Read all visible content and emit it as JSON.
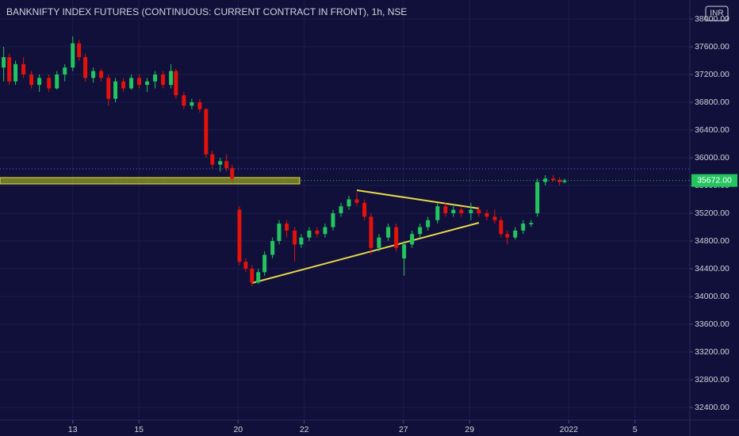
{
  "chart_data": {
    "type": "candlestick",
    "title": "BANKNIFTY INDEX FUTURES (CONTINUOUS: CURRENT CONTRACT IN FRONT), 1h, NSE",
    "currency": "INR",
    "up_color": "#22c55e",
    "down_color": "#e3120b",
    "x": [
      -2.09,
      -1.92,
      -1.73,
      -1.49,
      -1.25,
      -1.01,
      -0.72,
      -0.48,
      -0.24,
      0,
      0.19,
      0.38,
      0.62,
      0.86,
      1.08,
      1.29,
      1.53,
      1.77,
      2.01,
      2.25,
      2.49,
      2.73,
      2.97,
      3.12,
      3.36,
      3.6,
      3.84,
      4.03,
      4.22,
      4.46,
      4.65,
      4.82,
      5.04,
      5.23,
      5.42,
      5.61,
      5.8,
      6.04,
      6.24,
      6.47,
      6.71,
      6.91,
      7.15,
      7.39,
      7.63,
      7.87,
      8.11,
      8.35,
      8.59,
      8.82,
      9.02,
      9.26,
      9.54,
      9.78,
      10.02,
      10.26,
      10.5,
      10.74,
      11.03,
      11.27,
      11.51,
      11.75,
      12.04,
      12.28,
      12.52,
      12.76,
      12.95,
      13.14,
      13.38,
      13.62,
      13.86,
      14.05,
      14.29,
      14.53,
      14.72,
      14.87
    ],
    "open": [
      37300,
      37450,
      37100,
      37350,
      37200,
      37050,
      37150,
      37000,
      37200,
      37300,
      37650,
      37450,
      37150,
      37250,
      37150,
      36850,
      37100,
      37000,
      37150,
      37050,
      37100,
      37200,
      37050,
      37250,
      36900,
      36750,
      36800,
      36700,
      36050,
      35900,
      35950,
      35850,
      35250,
      34500,
      34400,
      34200,
      34350,
      34600,
      34800,
      35050,
      34950,
      34750,
      34850,
      34950,
      34900,
      35000,
      35200,
      35300,
      35400,
      35350,
      35150,
      34700,
      34850,
      35000,
      34550,
      34750,
      34900,
      35000,
      35100,
      35300,
      35200,
      35250,
      35200,
      35250,
      35200,
      35150,
      35100,
      34900,
      34850,
      34950,
      35040,
      35200,
      35650,
      35700,
      35680,
      35650
    ],
    "high": [
      37600,
      37500,
      37400,
      37450,
      37250,
      37200,
      37200,
      37250,
      37350,
      37750,
      37700,
      37500,
      37300,
      37280,
      37200,
      37150,
      37150,
      37200,
      37200,
      37150,
      37250,
      37250,
      37350,
      37280,
      36950,
      36850,
      36850,
      36720,
      36100,
      36000,
      36050,
      35900,
      35300,
      34550,
      34450,
      34400,
      34650,
      34850,
      35100,
      35100,
      35000,
      34900,
      35000,
      35000,
      35050,
      35250,
      35350,
      35450,
      35500,
      35400,
      35200,
      34900,
      35050,
      35050,
      34800,
      34950,
      35050,
      35150,
      35350,
      35350,
      35300,
      35300,
      35350,
      35300,
      35250,
      35250,
      35150,
      34950,
      35000,
      35100,
      35100,
      35700,
      35750,
      35750,
      35720,
      35700
    ],
    "low": [
      37100,
      37050,
      37050,
      37150,
      37000,
      36950,
      36950,
      36980,
      37100,
      37250,
      37400,
      37100,
      37080,
      37100,
      36750,
      36800,
      36950,
      36980,
      37000,
      36950,
      37000,
      37000,
      37000,
      36850,
      36700,
      36700,
      36650,
      36000,
      35850,
      35800,
      35800,
      35650,
      34450,
      34350,
      34150,
      34180,
      34300,
      34550,
      34750,
      34850,
      34500,
      34700,
      34800,
      34850,
      34850,
      34950,
      35150,
      35250,
      35300,
      35100,
      34600,
      34650,
      34800,
      34650,
      34300,
      34700,
      34850,
      34950,
      35050,
      35150,
      35150,
      35150,
      35100,
      35150,
      35100,
      35050,
      34850,
      34750,
      34820,
      34900,
      35000,
      35150,
      35600,
      35650,
      35600,
      35630
    ],
    "close": [
      37450,
      37100,
      37350,
      37200,
      37050,
      37150,
      37000,
      37200,
      37300,
      37650,
      37450,
      37150,
      37250,
      37150,
      36850,
      37100,
      37000,
      37150,
      37050,
      37100,
      37200,
      37050,
      37250,
      36900,
      36750,
      36800,
      36700,
      36050,
      35900,
      35950,
      35850,
      35700,
      34500,
      34400,
      34200,
      34350,
      34600,
      34800,
      35050,
      34950,
      34750,
      34850,
      34950,
      34900,
      35000,
      35200,
      35300,
      35400,
      35350,
      35150,
      34700,
      34850,
      35000,
      34700,
      34750,
      34900,
      35000,
      35100,
      35300,
      35200,
      35250,
      35200,
      35250,
      35200,
      35150,
      35100,
      34900,
      34850,
      34950,
      35050,
      35060,
      35650,
      35700,
      35680,
      35650,
      35672
    ],
    "xlim": [
      -2.2,
      18.66
    ],
    "xticks": [
      {
        "value": 0,
        "label": "13"
      },
      {
        "value": 2,
        "label": "15"
      },
      {
        "value": 5,
        "label": "20"
      },
      {
        "value": 7,
        "label": "22"
      },
      {
        "value": 10,
        "label": "27"
      },
      {
        "value": 12,
        "label": "29"
      },
      {
        "value": 15,
        "label": "2022"
      },
      {
        "value": 17,
        "label": "5"
      }
    ],
    "ylim": [
      32217,
      38274
    ],
    "yticks": [
      {
        "value": 32400,
        "label": "32400.00"
      },
      {
        "value": 32800,
        "label": "32800.00"
      },
      {
        "value": 33200,
        "label": "33200.00"
      },
      {
        "value": 33600,
        "label": "33600.00"
      },
      {
        "value": 34000,
        "label": "34000.00"
      },
      {
        "value": 34400,
        "label": "34400.00"
      },
      {
        "value": 34800,
        "label": "34800.00"
      },
      {
        "value": 35200,
        "label": "35200.00"
      },
      {
        "value": 35600,
        "label": "35600.00"
      },
      {
        "value": 36000,
        "label": "36000.00"
      },
      {
        "value": 36400,
        "label": "36400.00"
      },
      {
        "value": 36800,
        "label": "36800.00"
      },
      {
        "value": 37200,
        "label": "37200.00"
      },
      {
        "value": 37600,
        "label": "37600.00"
      },
      {
        "value": 38000,
        "label": "38000.00"
      }
    ],
    "last_price": {
      "value": 35672,
      "label": "35672.00"
    },
    "grid": true
  }
}
